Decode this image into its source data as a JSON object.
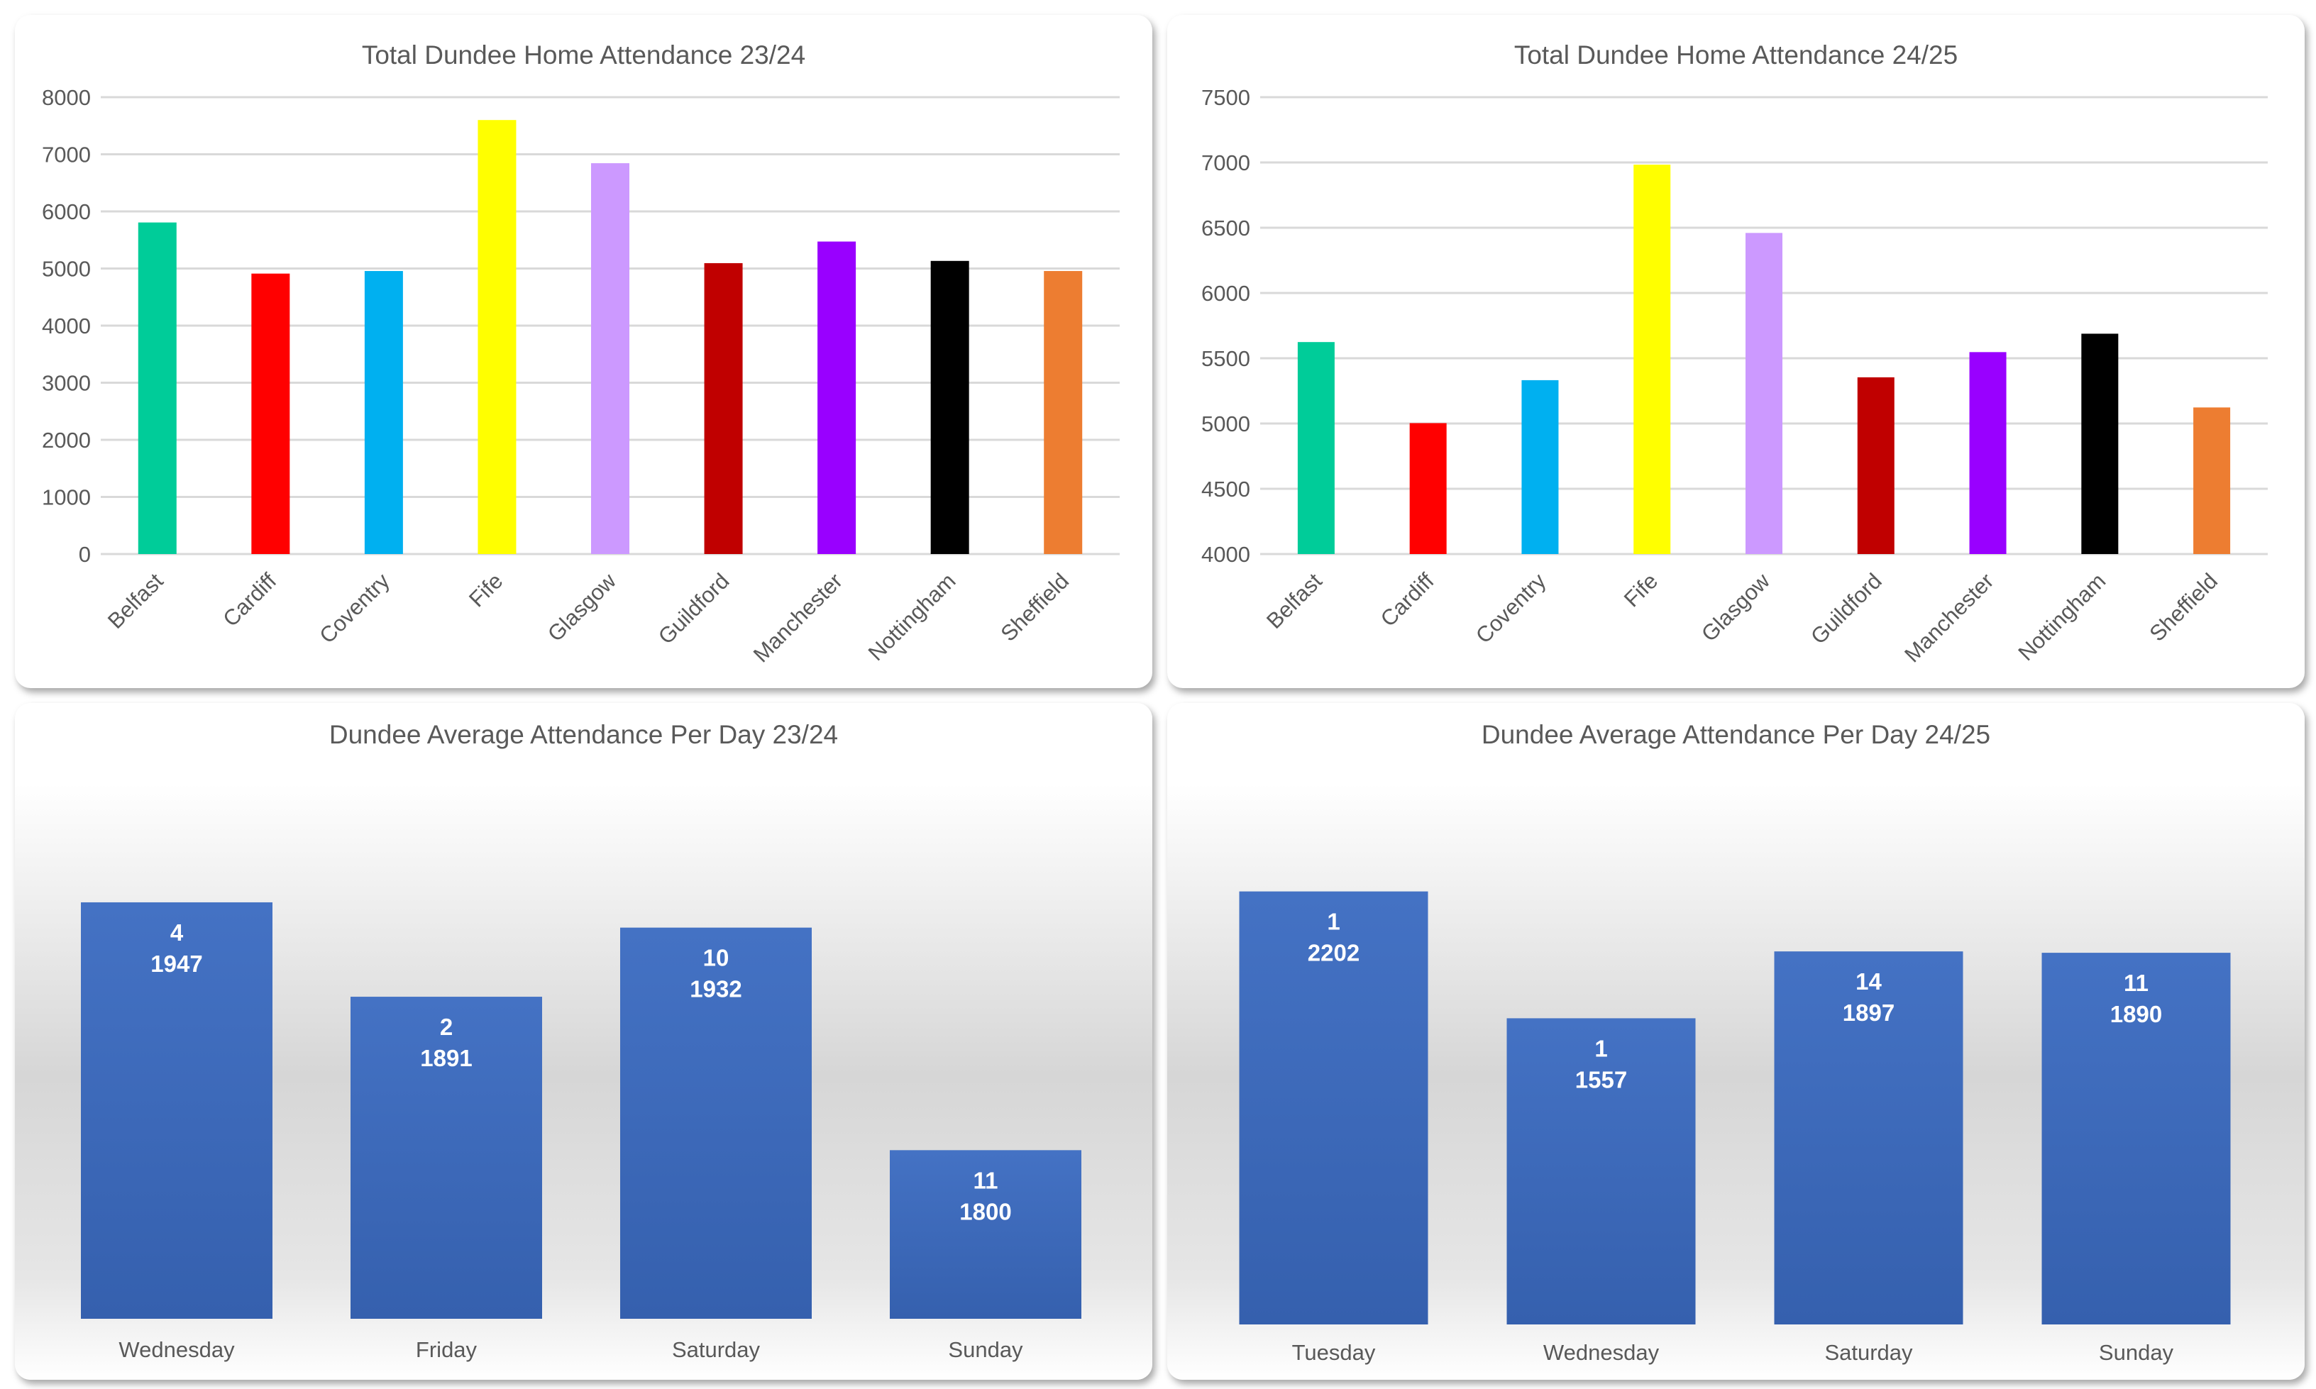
{
  "chart_data": [
    {
      "type": "bar",
      "title": "Total Dundee Home Attendance 23/24",
      "categories": [
        "Belfast",
        "Cardiff",
        "Coventry",
        "Fife",
        "Glasgow",
        "Guildford",
        "Manchester",
        "Nottingham",
        "Sheffield"
      ],
      "values": [
        5806,
        4911,
        4956,
        7600,
        6844,
        5094,
        5472,
        5133,
        4956
      ],
      "colors": [
        "#00CC99",
        "#FF0000",
        "#00B0F0",
        "#FFFF00",
        "#CC99FF",
        "#C00000",
        "#9900FF",
        "#000000",
        "#ED7D31"
      ],
      "ylim": [
        0,
        8000
      ],
      "yticks": [
        0,
        1000,
        2000,
        3000,
        4000,
        5000,
        6000,
        7000,
        8000
      ],
      "grid": true,
      "xlabel": "",
      "ylabel": ""
    },
    {
      "type": "bar",
      "title": "Total Dundee Home Attendance 24/25",
      "categories": [
        "Belfast",
        "Cardiff",
        "Coventry",
        "Fife",
        "Glasgow",
        "Guildford",
        "Manchester",
        "Nottingham",
        "Sheffield"
      ],
      "values": [
        5624,
        5003,
        5332,
        6983,
        6460,
        5354,
        5547,
        5688,
        5123
      ],
      "colors": [
        "#00CC99",
        "#FF0000",
        "#00B0F0",
        "#FFFF00",
        "#CC99FF",
        "#C00000",
        "#9900FF",
        "#000000",
        "#ED7D31"
      ],
      "ylim": [
        4000,
        7500
      ],
      "yticks": [
        4000,
        4500,
        5000,
        5500,
        6000,
        6500,
        7000,
        7500
      ],
      "grid": true,
      "xlabel": "",
      "ylabel": ""
    },
    {
      "type": "bar",
      "title": "Dundee Average Attendance Per Day 23/24",
      "categories": [
        "Wednesday",
        "Friday",
        "Saturday",
        "Sunday"
      ],
      "values": [
        1947,
        1891,
        1932,
        1800
      ],
      "counts": [
        "4",
        "2",
        "10",
        "11"
      ],
      "color": "#4472C4",
      "ylim": [
        1700,
        2000
      ],
      "grid": false,
      "xlabel": "",
      "ylabel": ""
    },
    {
      "type": "bar",
      "title": "Dundee Average Attendance Per Day 24/25",
      "categories": [
        "Tuesday",
        "Wednesday",
        "Saturday",
        "Sunday"
      ],
      "values": [
        2202,
        1557,
        1897,
        1890
      ],
      "counts": [
        "1",
        "1",
        "14",
        "11"
      ],
      "color": "#4472C4",
      "ylim": [
        0,
        2500
      ],
      "grid": false,
      "xlabel": "",
      "ylabel": ""
    }
  ]
}
